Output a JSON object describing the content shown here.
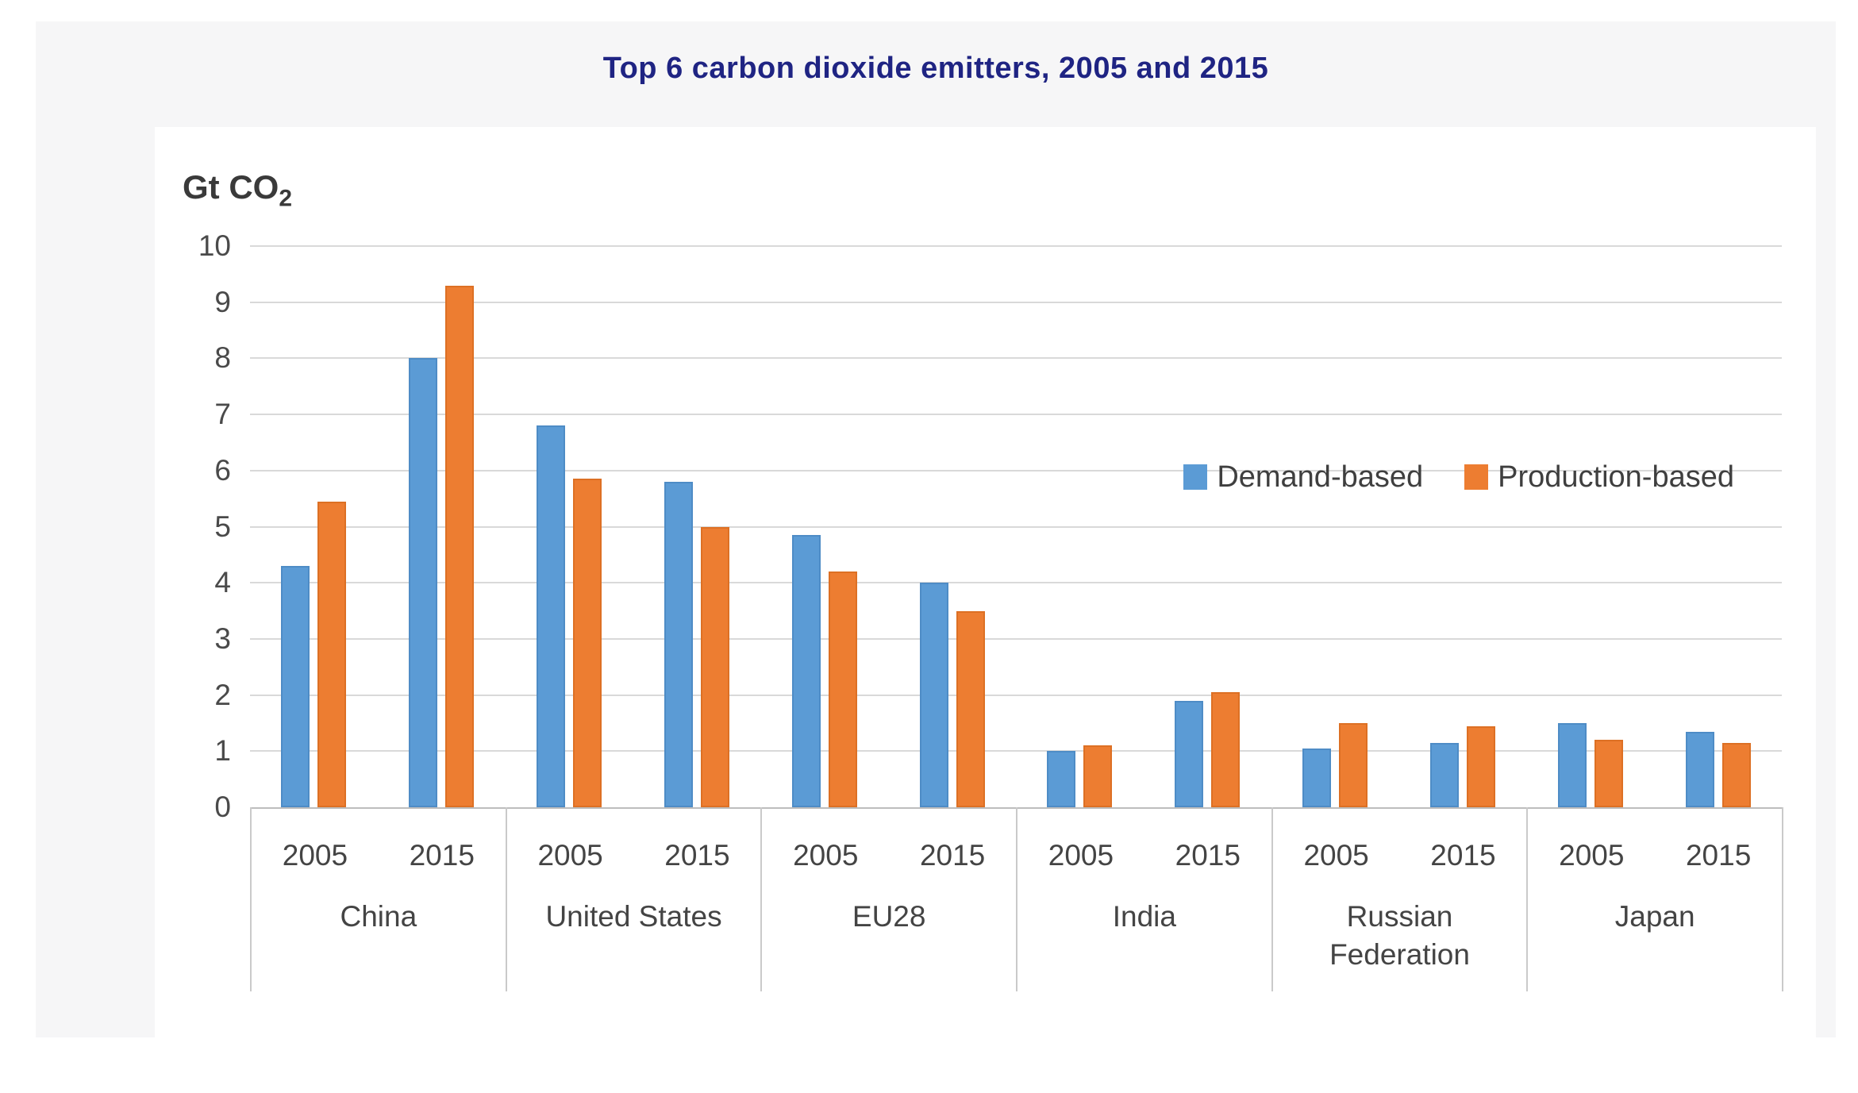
{
  "page": {
    "title": "Top 6 carbon dioxide emitters, 2005 and 2015"
  },
  "y_axis": {
    "unit": "Gt CO",
    "unit_sub": "2",
    "min": 0,
    "max": 10,
    "step": 1,
    "ticks": [
      "10",
      "9",
      "8",
      "7",
      "6",
      "5",
      "4",
      "3",
      "2",
      "1",
      "0"
    ]
  },
  "legend": {
    "items": [
      {
        "label": "Demand-based",
        "color": "#5B9BD5"
      },
      {
        "label": "Production-based",
        "color": "#ED7D31"
      }
    ]
  },
  "colors": {
    "demand_bar": "#5B9BD5",
    "production_bar": "#ED7D31",
    "title_text": "#1f2483",
    "panel_background": "#f6f6f7",
    "card_background": "#ffffff",
    "gridline": "#d9d9d9",
    "label_text": "#444444"
  },
  "chart_data": {
    "type": "bar",
    "title": "Top 6 carbon dioxide emitters, 2005 and 2015",
    "ylabel": "Gt CO2",
    "xlabel": "",
    "ylim": [
      0,
      10
    ],
    "ytick_step": 1,
    "grid": true,
    "legend_position": "inside-upper-right",
    "categories": [
      "China",
      "United States",
      "EU28",
      "India",
      "Russian Federation",
      "Japan"
    ],
    "subcategories": [
      "2005",
      "2015"
    ],
    "series": [
      {
        "name": "Demand-based",
        "color": "#5B9BD5",
        "values": [
          [
            4.3,
            8.0
          ],
          [
            6.8,
            5.8
          ],
          [
            4.85,
            4.0
          ],
          [
            1.0,
            1.9
          ],
          [
            1.05,
            1.15
          ],
          [
            1.5,
            1.35
          ]
        ]
      },
      {
        "name": "Production-based",
        "color": "#ED7D31",
        "values": [
          [
            5.45,
            9.3
          ],
          [
            5.85,
            5.0
          ],
          [
            4.2,
            3.5
          ],
          [
            1.1,
            2.05
          ],
          [
            1.5,
            1.45
          ],
          [
            1.2,
            1.15
          ]
        ]
      }
    ]
  }
}
